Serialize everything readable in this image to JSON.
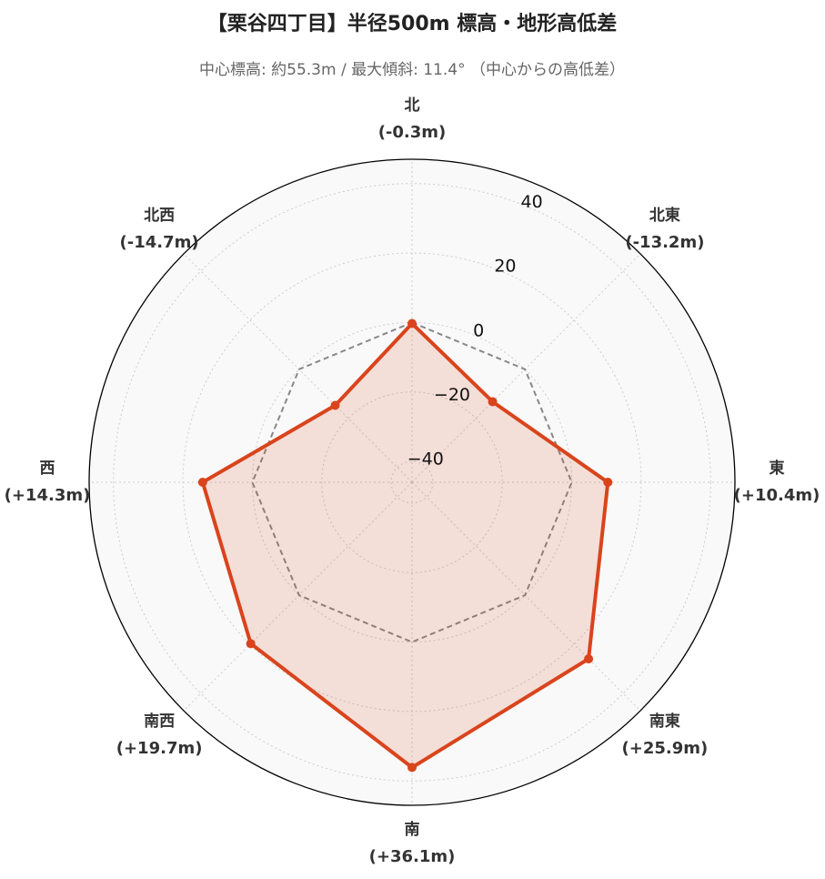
{
  "chart_data": {
    "type": "radar",
    "title": "【栗谷四丁目】半径500m 標高・地形高低差",
    "subtitle": "中心標高: 約55.3m / 最大傾斜: 11.4° （中心からの高低差）",
    "categories": [
      "北",
      "北東",
      "東",
      "南東",
      "南",
      "南西",
      "西",
      "北西"
    ],
    "values": [
      -0.3,
      -13.2,
      10.4,
      25.9,
      36.1,
      19.7,
      14.3,
      -14.7
    ],
    "value_labels": [
      "(-0.3m)",
      "(-13.2m)",
      "(+10.4m)",
      "(+25.9m)",
      "(+36.1m)",
      "(+19.7m)",
      "(+14.3m)",
      "(-14.7m)"
    ],
    "color": "#d9441c",
    "baseline": 0,
    "ylim": [
      -46,
      47
    ],
    "yticks": [
      {
        "value": -40,
        "label": "−40"
      },
      {
        "value": -20,
        "label": "−20"
      },
      0,
      20,
      40
    ],
    "grid": true
  }
}
